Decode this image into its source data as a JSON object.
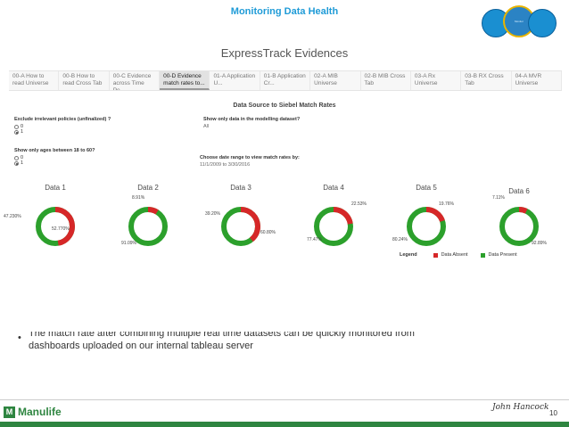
{
  "slide": {
    "title": "Monitoring Data Health"
  },
  "header_circles": {
    "left": "",
    "middle": "Monitor",
    "right": ""
  },
  "dashboard": {
    "title": "ExpressTrack Evidences",
    "tabs": [
      {
        "label": "00-A How to read Universe",
        "active": false
      },
      {
        "label": "00-B How to read Cross Tab",
        "active": false
      },
      {
        "label": "00-C Evidence across Time Pe...",
        "active": false
      },
      {
        "label": "00-D Evidence match rates to...",
        "active": true
      },
      {
        "label": "01-A Application U...",
        "active": false
      },
      {
        "label": "01-B Application Cr...",
        "active": false
      },
      {
        "label": "02-A MIB Universe",
        "active": false
      },
      {
        "label": "02-B MIB Cross Tab",
        "active": false
      },
      {
        "label": "03-A Rx Universe",
        "active": false
      },
      {
        "label": "03-B RX Cross Tab",
        "active": false
      },
      {
        "label": "04-A MVR Universe",
        "active": false
      }
    ],
    "sheet_title": "Data Source to Siebel Match Rates",
    "filters": {
      "exclude": {
        "label": "Exclude irrelevant policies (unfinalized) ?",
        "options": [
          "0",
          "1"
        ],
        "selected": "1"
      },
      "ages": {
        "label": "Show only ages between 18 to 60?",
        "options": [
          "0",
          "1"
        ],
        "selected": "1"
      },
      "modelling": {
        "label": "Show only data in the modelling dataset?",
        "value": "All"
      },
      "date_range": {
        "label": "Choose date range to view match rates by:",
        "value": "11/1/2009 to 3/30/2016"
      }
    }
  },
  "chart_data": {
    "type": "pie",
    "series_names": [
      "Data Absent",
      "Data Present"
    ],
    "charts": [
      {
        "label": "Data 1",
        "absent": 47.23,
        "present": 52.77,
        "absent_label": "47.230%",
        "present_label": "52.770%"
      },
      {
        "label": "Data 2",
        "absent": 8.91,
        "present": 91.09,
        "absent_label": "8.91%",
        "present_label": "91.09%"
      },
      {
        "label": "Data 3",
        "absent": 39.2,
        "present": 60.8,
        "absent_label": "39.20%",
        "present_label": "60.80%"
      },
      {
        "label": "Data 4",
        "absent": 22.53,
        "present": 77.47,
        "absent_label": "22.53%",
        "present_label": "77.47%"
      },
      {
        "label": "Data 5",
        "absent": 19.76,
        "present": 80.24,
        "absent_label": "19.76%",
        "present_label": "80.24%"
      },
      {
        "label": "Data 6",
        "absent": 7.11,
        "present": 92.89,
        "absent_label": "7.11%",
        "present_label": "92.89%"
      }
    ],
    "legend": {
      "title": "Legend",
      "items": [
        {
          "name": "Data Absent",
          "color": "#d62728"
        },
        {
          "name": "Data Present",
          "color": "#2ca02c"
        }
      ]
    }
  },
  "bullet": {
    "line1": "The match rate after combining multiple real time datasets can be quickly monitored from",
    "line2": "dashboards uploaded on our internal tableau server"
  },
  "footer": {
    "logo": "Manulife",
    "partner": "John Hancock",
    "page": "10"
  },
  "colors": {
    "accent": "#1f9bd7",
    "absent": "#d62728",
    "present": "#2ca02c",
    "brand_green": "#2e8540"
  }
}
